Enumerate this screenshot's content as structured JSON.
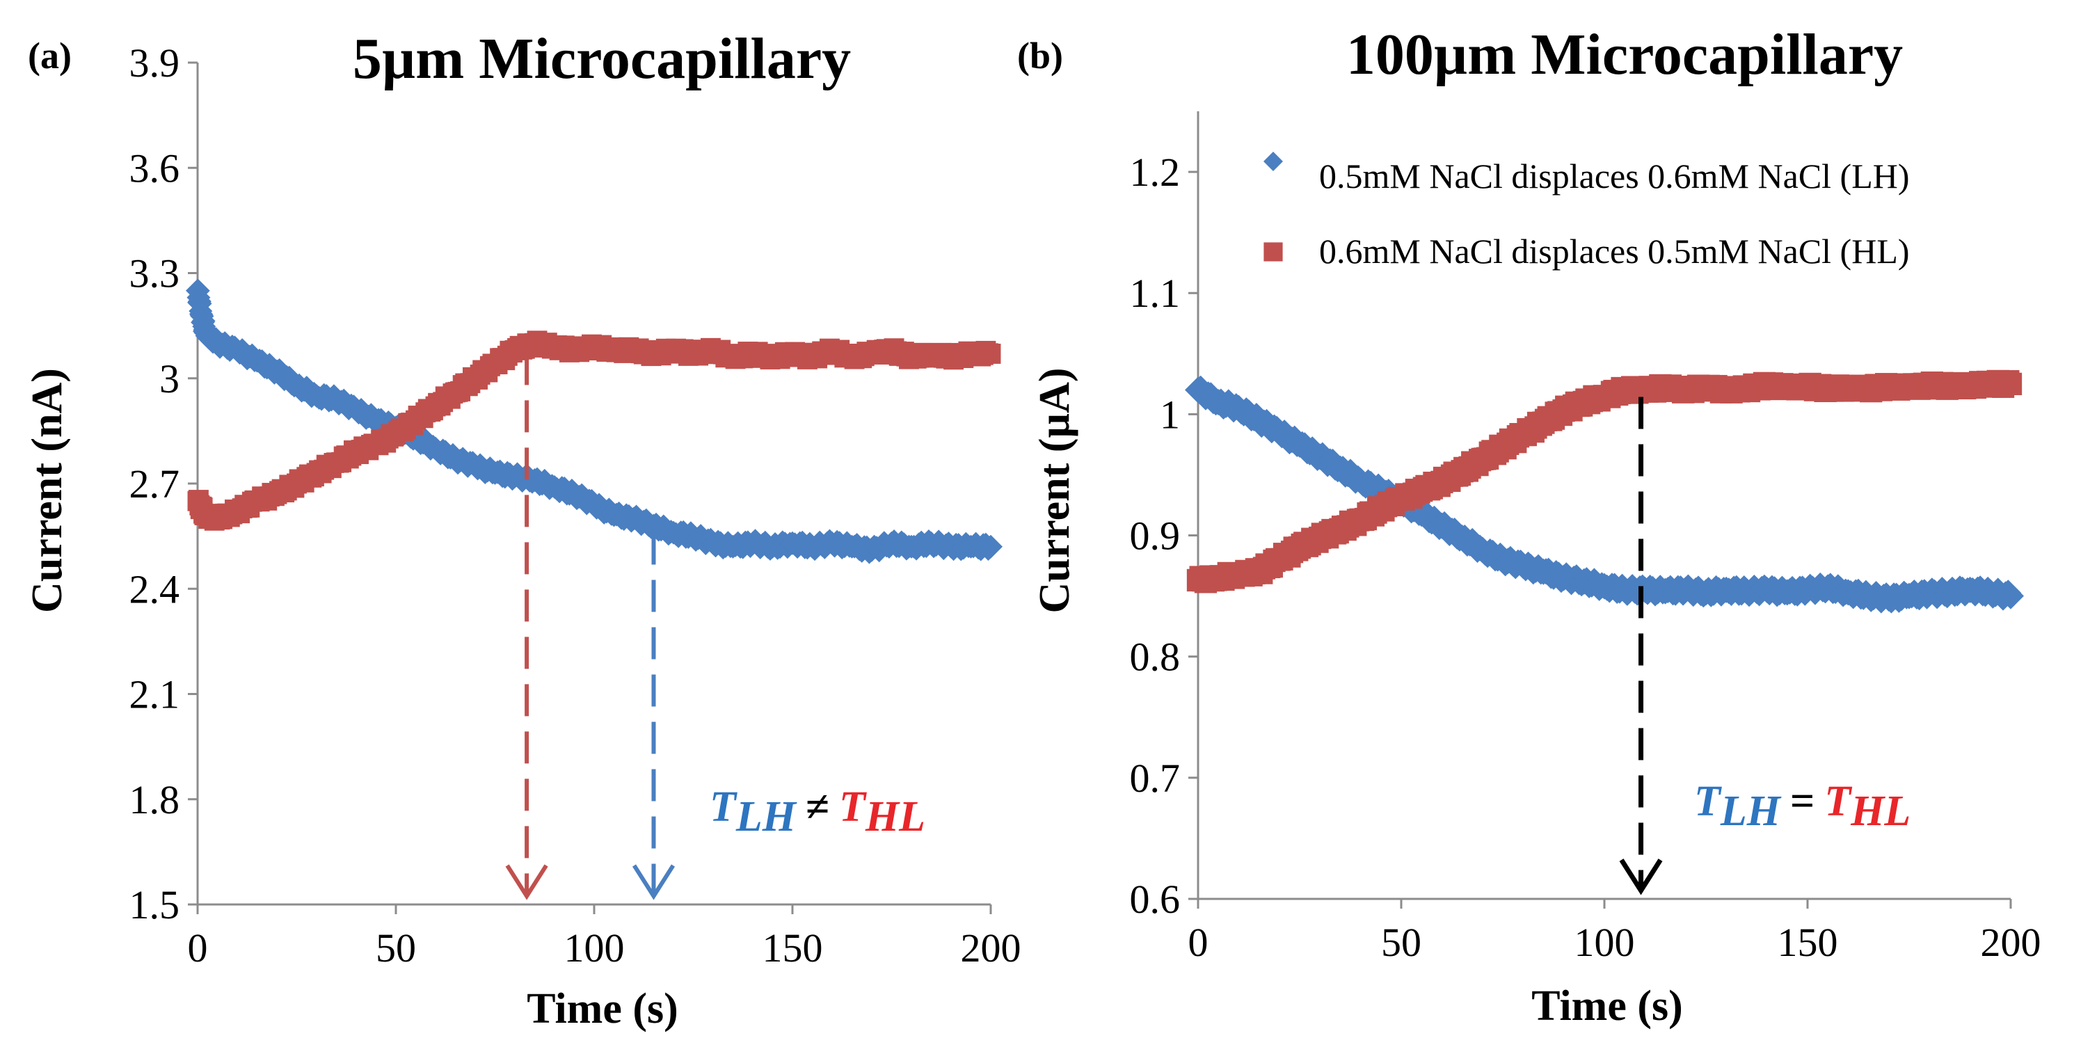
{
  "chart_data": [
    {
      "type": "scatter",
      "panel_label": "(a)",
      "title": "5µm Microcapillary",
      "xlabel": "Time (s)",
      "ylabel": "Current (nA)",
      "xlim": [
        0,
        200
      ],
      "ylim": [
        1.5,
        3.9
      ],
      "xticks": [
        0,
        50,
        100,
        150,
        200
      ],
      "yticks": [
        1.5,
        1.8,
        2.1,
        2.4,
        2.7,
        3.0,
        3.3,
        3.6,
        3.9
      ],
      "ytick_labels": [
        "1.5",
        "1.8",
        "2.1",
        "2.4",
        "2.7",
        "3",
        "3.3",
        "3.6",
        "3.9"
      ],
      "series": [
        {
          "name": "LH",
          "color": "#4a7fc1",
          "marker": "diamond",
          "x": [
            0,
            1,
            2,
            5,
            10,
            15,
            20,
            25,
            30,
            35,
            40,
            45,
            50,
            55,
            60,
            65,
            70,
            75,
            80,
            85,
            90,
            95,
            100,
            105,
            110,
            115,
            120,
            125,
            130,
            135,
            140,
            145,
            150,
            155,
            160,
            165,
            170,
            175,
            180,
            185,
            190,
            195,
            200
          ],
          "y": [
            3.25,
            3.18,
            3.13,
            3.1,
            3.08,
            3.05,
            3.02,
            2.98,
            2.95,
            2.94,
            2.91,
            2.88,
            2.86,
            2.83,
            2.8,
            2.77,
            2.75,
            2.73,
            2.72,
            2.71,
            2.69,
            2.67,
            2.64,
            2.61,
            2.6,
            2.58,
            2.56,
            2.55,
            2.53,
            2.52,
            2.53,
            2.52,
            2.53,
            2.52,
            2.53,
            2.52,
            2.51,
            2.53,
            2.52,
            2.53,
            2.52,
            2.52,
            2.52
          ]
        },
        {
          "name": "HL",
          "color": "#c0504d",
          "marker": "square",
          "x": [
            0,
            2,
            5,
            10,
            15,
            20,
            25,
            30,
            35,
            40,
            45,
            50,
            55,
            60,
            65,
            70,
            75,
            80,
            85,
            90,
            95,
            100,
            105,
            110,
            115,
            120,
            125,
            130,
            135,
            140,
            145,
            150,
            155,
            160,
            165,
            170,
            175,
            180,
            185,
            190,
            195,
            200
          ],
          "y": [
            2.65,
            2.61,
            2.6,
            2.62,
            2.65,
            2.67,
            2.7,
            2.73,
            2.76,
            2.79,
            2.81,
            2.84,
            2.88,
            2.92,
            2.96,
            3.0,
            3.04,
            3.08,
            3.1,
            3.09,
            3.08,
            3.09,
            3.08,
            3.08,
            3.07,
            3.08,
            3.07,
            3.08,
            3.06,
            3.07,
            3.06,
            3.07,
            3.06,
            3.08,
            3.06,
            3.07,
            3.08,
            3.06,
            3.07,
            3.06,
            3.07,
            3.07
          ]
        }
      ],
      "arrows": [
        {
          "x": 83,
          "color": "#c0504d"
        },
        {
          "x": 115,
          "color": "#4a7fc1"
        }
      ],
      "annotation": {
        "t1_base": "T",
        "t1_sub": "LH",
        "op": "≠",
        "t2_base": "T",
        "t2_sub": "HL",
        "t1_color": "#2e75c0",
        "t2_color": "#e8262a"
      }
    },
    {
      "type": "scatter",
      "panel_label": "(b)",
      "title": "100µm Microcapillary",
      "xlabel": "Time (s)",
      "ylabel": "Current (µA)",
      "xlim": [
        0,
        200
      ],
      "ylim": [
        0.6,
        1.25
      ],
      "xticks": [
        0,
        50,
        100,
        150,
        200
      ],
      "yticks": [
        0.6,
        0.7,
        0.8,
        0.9,
        1.0,
        1.1,
        1.2
      ],
      "ytick_labels": [
        "0.6",
        "0.7",
        "0.8",
        "0.9",
        "1",
        "1.1",
        "1.2"
      ],
      "legend": {
        "position": "top-right",
        "entries": [
          {
            "label": "0.5mM NaCl displaces 0.6mM NaCl (LH)",
            "marker": "diamond",
            "color": "#4a7fc1"
          },
          {
            "label": "0.6mM NaCl displaces 0.5mM NaCl (HL)",
            "marker": "square",
            "color": "#c0504d"
          }
        ]
      },
      "series": [
        {
          "name": "LH",
          "color": "#4a7fc1",
          "marker": "diamond",
          "x": [
            0,
            5,
            10,
            15,
            20,
            25,
            30,
            35,
            40,
            45,
            50,
            55,
            60,
            65,
            70,
            75,
            80,
            85,
            90,
            95,
            100,
            105,
            110,
            115,
            120,
            125,
            130,
            135,
            140,
            145,
            150,
            155,
            160,
            165,
            170,
            175,
            180,
            185,
            190,
            195,
            200
          ],
          "y": [
            1.02,
            1.01,
            1.005,
            0.995,
            0.985,
            0.975,
            0.965,
            0.955,
            0.945,
            0.937,
            0.928,
            0.918,
            0.908,
            0.898,
            0.888,
            0.88,
            0.875,
            0.87,
            0.865,
            0.862,
            0.858,
            0.855,
            0.855,
            0.854,
            0.855,
            0.853,
            0.855,
            0.854,
            0.855,
            0.853,
            0.855,
            0.857,
            0.853,
            0.85,
            0.848,
            0.85,
            0.852,
            0.853,
            0.855,
            0.853,
            0.85
          ]
        },
        {
          "name": "HL",
          "color": "#c0504d",
          "marker": "square",
          "x": [
            0,
            5,
            10,
            15,
            20,
            25,
            30,
            35,
            40,
            45,
            50,
            55,
            60,
            65,
            70,
            75,
            80,
            85,
            90,
            95,
            100,
            105,
            110,
            115,
            120,
            125,
            130,
            135,
            140,
            145,
            150,
            155,
            160,
            165,
            170,
            175,
            180,
            185,
            190,
            195,
            200
          ],
          "y": [
            0.863,
            0.865,
            0.868,
            0.87,
            0.88,
            0.89,
            0.898,
            0.905,
            0.913,
            0.922,
            0.93,
            0.937,
            0.944,
            0.953,
            0.963,
            0.973,
            0.983,
            0.993,
            1.003,
            1.01,
            1.015,
            1.02,
            1.02,
            1.022,
            1.02,
            1.022,
            1.02,
            1.021,
            1.024,
            1.022,
            1.023,
            1.021,
            1.022,
            1.021,
            1.023,
            1.022,
            1.024,
            1.023,
            1.024,
            1.025,
            1.025
          ]
        }
      ],
      "arrows": [
        {
          "x": 109,
          "color": "#000000"
        }
      ],
      "annotation": {
        "t1_base": "T",
        "t1_sub": "LH",
        "op": "=",
        "t2_base": "T",
        "t2_sub": "HL",
        "t1_color": "#2e75c0",
        "t2_color": "#e8262a"
      }
    }
  ]
}
